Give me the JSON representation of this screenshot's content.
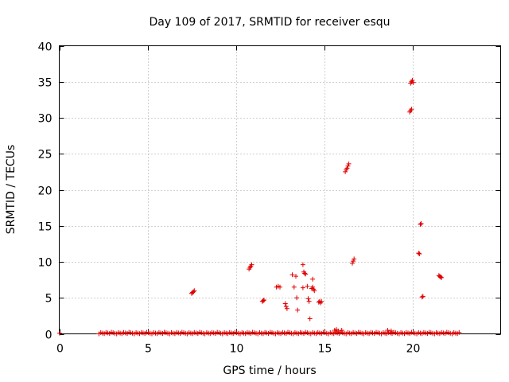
{
  "chart_data": {
    "type": "scatter",
    "title": "Day 109 of 2017, SRMTID for receiver esqu",
    "xlabel": "GPS time / hours",
    "ylabel": "SRMTID / TECUs",
    "xlim": [
      0,
      25
    ],
    "ylim": [
      0,
      40
    ],
    "xticks": [
      0,
      5,
      10,
      15,
      20
    ],
    "yticks": [
      0,
      5,
      10,
      15,
      20,
      25,
      30,
      35,
      40
    ],
    "xtick_labels": [
      "0",
      "5",
      "10",
      "15",
      "20"
    ],
    "ytick_labels": [
      "0",
      "5",
      "10",
      "15",
      "20",
      "25",
      "30",
      "35",
      "40"
    ],
    "grid": true,
    "marker": "+",
    "color": "#e00000",
    "baseline": {
      "x_start": 2.25,
      "x_end": 22.75,
      "step": 0.1,
      "y_low": 0.0,
      "y_high": 0.25
    },
    "series": [
      {
        "name": "SRMTID",
        "points": [
          [
            0.02,
            0.1
          ],
          [
            7.5,
            5.6
          ],
          [
            7.55,
            5.75
          ],
          [
            7.6,
            5.85
          ],
          [
            7.65,
            6.0
          ],
          [
            10.75,
            9.0
          ],
          [
            10.8,
            9.2
          ],
          [
            10.85,
            9.4
          ],
          [
            10.9,
            9.6
          ],
          [
            11.5,
            4.5
          ],
          [
            11.55,
            4.6
          ],
          [
            11.6,
            4.7
          ],
          [
            12.3,
            6.5
          ],
          [
            12.4,
            6.6
          ],
          [
            12.5,
            6.5
          ],
          [
            12.8,
            4.2
          ],
          [
            12.85,
            3.8
          ],
          [
            12.9,
            3.5
          ],
          [
            13.2,
            8.2
          ],
          [
            13.3,
            6.5
          ],
          [
            13.4,
            8.0
          ],
          [
            13.45,
            5.0
          ],
          [
            13.5,
            3.3
          ],
          [
            13.8,
            9.6
          ],
          [
            13.85,
            8.6
          ],
          [
            13.9,
            8.4
          ],
          [
            13.95,
            8.3
          ],
          [
            13.8,
            6.4
          ],
          [
            14.05,
            6.6
          ],
          [
            14.1,
            4.9
          ],
          [
            14.15,
            4.5
          ],
          [
            14.2,
            2.1
          ],
          [
            14.3,
            6.3
          ],
          [
            14.35,
            6.5
          ],
          [
            14.4,
            6.2
          ],
          [
            14.35,
            7.6
          ],
          [
            14.45,
            6.0
          ],
          [
            14.7,
            4.4
          ],
          [
            14.75,
            4.5
          ],
          [
            14.8,
            4.3
          ],
          [
            14.85,
            4.5
          ],
          [
            16.2,
            22.5
          ],
          [
            16.25,
            22.8
          ],
          [
            16.3,
            23.0
          ],
          [
            16.35,
            23.3
          ],
          [
            16.4,
            23.6
          ],
          [
            16.6,
            9.8
          ],
          [
            16.65,
            10.1
          ],
          [
            16.7,
            10.4
          ],
          [
            19.85,
            30.8
          ],
          [
            19.9,
            31.0
          ],
          [
            19.95,
            31.2
          ],
          [
            19.9,
            34.8
          ],
          [
            19.95,
            35.0
          ],
          [
            20.0,
            35.2
          ],
          [
            20.05,
            34.9
          ],
          [
            20.35,
            11.2
          ],
          [
            20.4,
            11.1
          ],
          [
            20.45,
            15.2
          ],
          [
            20.5,
            15.3
          ],
          [
            20.55,
            5.1
          ],
          [
            20.6,
            5.2
          ],
          [
            21.5,
            8.1
          ],
          [
            21.55,
            8.0
          ],
          [
            21.6,
            7.9
          ],
          [
            21.65,
            7.8
          ],
          [
            15.6,
            0.5
          ],
          [
            15.7,
            0.6
          ],
          [
            15.8,
            0.4
          ],
          [
            16.0,
            0.5
          ],
          [
            18.6,
            0.5
          ],
          [
            18.8,
            0.4
          ]
        ]
      }
    ]
  }
}
